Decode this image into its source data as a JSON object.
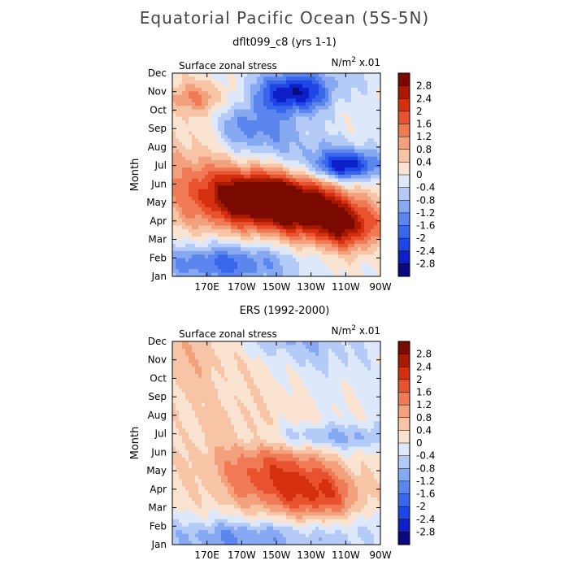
{
  "title": "Equatorial Pacific Ocean (5S-5N)",
  "colors": {
    "levels": [
      -2.8,
      -2.4,
      -2.0,
      -1.6,
      -1.2,
      -0.8,
      -0.4,
      0,
      0.4,
      0.8,
      1.2,
      1.6,
      2.0,
      2.4,
      2.8
    ],
    "palette": [
      "#0a0a80",
      "#0c1fc8",
      "#1f45e6",
      "#3a66ec",
      "#5b86ee",
      "#87a9f2",
      "#b5cbf7",
      "#dde8fb",
      "#fbe3d2",
      "#f7c4a6",
      "#f3a07d",
      "#ef7a55",
      "#e8522f",
      "#d4300f",
      "#a71b02",
      "#7a0a00"
    ]
  },
  "chart_data": [
    {
      "type": "heatmap",
      "title": "dflt099_c8 (yrs 1-1)",
      "subtitle_left": "Surface zonal stress",
      "units": "N/m",
      "units_sup": "2",
      "units_scale": " x.01",
      "ylabel": "Month",
      "xlabel": "",
      "x_ticks": [
        "170E",
        "170W",
        "150W",
        "130W",
        "110W",
        "90W"
      ],
      "y_ticks": [
        "Jan",
        "Feb",
        "Mar",
        "Apr",
        "May",
        "Jun",
        "Jul",
        "Aug",
        "Sep",
        "Oct",
        "Nov",
        "Dec"
      ],
      "x_range_lon_E": [
        150,
        270
      ],
      "colorbar_labels": [
        "2.8",
        "2.4",
        "2",
        "1.6",
        "1.2",
        "0.8",
        "0.4",
        "0",
        "-0.4",
        "-0.8",
        "-1.2",
        "-1.6",
        "-2",
        "-2.4",
        "-2.8"
      ],
      "features": [
        {
          "lon": 200,
          "month": 4.3,
          "value": 2.9,
          "sx": 22,
          "sy": 1.1
        },
        {
          "lon": 230,
          "month": 3.6,
          "value": 2.4,
          "sx": 20,
          "sy": 1.1
        },
        {
          "lon": 252,
          "month": 2.6,
          "value": 2.0,
          "sx": 14,
          "sy": 0.9
        },
        {
          "lon": 185,
          "month": 5.0,
          "value": 1.2,
          "sx": 30,
          "sy": 1.6
        },
        {
          "lon": 160,
          "month": 6.5,
          "value": 0.6,
          "sx": 18,
          "sy": 2.5
        },
        {
          "lon": 165,
          "month": 9.7,
          "value": 1.0,
          "sx": 14,
          "sy": 0.6
        },
        {
          "lon": 220,
          "month": 9.9,
          "value": -2.5,
          "sx": 14,
          "sy": 0.7
        },
        {
          "lon": 250,
          "month": 6.0,
          "value": -2.6,
          "sx": 14,
          "sy": 0.6
        },
        {
          "lon": 205,
          "month": 6.5,
          "value": -1.2,
          "sx": 30,
          "sy": 1.4
        },
        {
          "lon": 195,
          "month": 8.3,
          "value": -1.1,
          "sx": 16,
          "sy": 0.9
        },
        {
          "lon": 180,
          "month": 0.7,
          "value": -1.8,
          "sx": 28,
          "sy": 0.8
        },
        {
          "lon": 230,
          "month": 11.0,
          "value": -0.6,
          "sx": 30,
          "sy": 1.0
        }
      ]
    },
    {
      "type": "heatmap",
      "title": "ERS (1992-2000)",
      "subtitle_left": "Surface zonal stress",
      "units": "N/m",
      "units_sup": "2",
      "units_scale": " x.01",
      "ylabel": "Month",
      "xlabel": "",
      "x_ticks": [
        "170E",
        "170W",
        "150W",
        "130W",
        "110W",
        "90W"
      ],
      "y_ticks": [
        "Jan",
        "Feb",
        "Mar",
        "Apr",
        "May",
        "Jun",
        "Jul",
        "Aug",
        "Sep",
        "Oct",
        "Nov",
        "Dec"
      ],
      "x_range_lon_E": [
        150,
        270
      ],
      "colorbar_labels": [
        "2.8",
        "2.4",
        "2",
        "1.6",
        "1.2",
        "0.8",
        "0.4",
        "0",
        "-0.4",
        "-0.8",
        "-1.2",
        "-1.6",
        "-2",
        "-2.4",
        "-2.8"
      ],
      "features": [
        {
          "lon": 218,
          "month": 3.4,
          "value": 1.5,
          "sx": 22,
          "sy": 1.3
        },
        {
          "lon": 240,
          "month": 2.4,
          "value": 1.2,
          "sx": 16,
          "sy": 1.0
        },
        {
          "lon": 195,
          "month": 4.2,
          "value": 0.7,
          "sx": 24,
          "sy": 1.4
        },
        {
          "lon": 175,
          "month": 8.5,
          "value": 0.4,
          "sx": 30,
          "sy": 3.5
        },
        {
          "lon": 155,
          "month": 10.5,
          "value": 0.4,
          "sx": 14,
          "sy": 1.5
        },
        {
          "lon": 240,
          "month": 5.8,
          "value": -1.1,
          "sx": 30,
          "sy": 0.5
        },
        {
          "lon": 235,
          "month": 10.3,
          "value": -0.5,
          "sx": 25,
          "sy": 1.2
        },
        {
          "lon": 215,
          "month": 11.0,
          "value": -0.6,
          "sx": 18,
          "sy": 0.5
        },
        {
          "lon": 190,
          "month": 0.4,
          "value": -1.3,
          "sx": 32,
          "sy": 0.7
        },
        {
          "lon": 250,
          "month": 0.8,
          "value": -0.5,
          "sx": 18,
          "sy": 0.9
        }
      ]
    }
  ]
}
